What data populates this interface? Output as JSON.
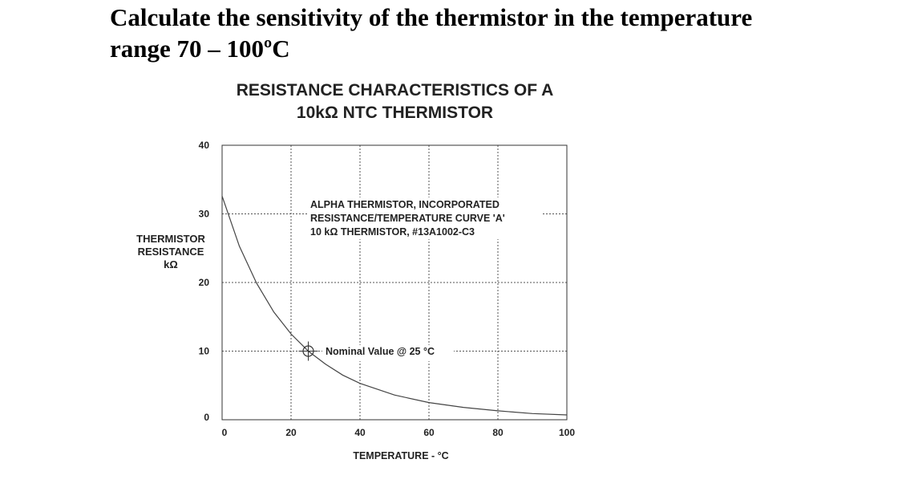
{
  "question": {
    "line1": "Calculate the sensitivity of the thermistor in the temperature",
    "line2": "range 70 – 100ºC"
  },
  "chart_data": {
    "type": "line",
    "title_lines": [
      "RESISTANCE CHARACTERISTICS OF A",
      "10kΩ NTC THERMISTOR"
    ],
    "ylabel_lines": [
      "THERMISTOR",
      "RESISTANCE",
      "kΩ"
    ],
    "xlabel": "TEMPERATURE - °C",
    "xlim": [
      0,
      100
    ],
    "ylim": [
      0,
      40
    ],
    "x_ticks": [
      0,
      20,
      40,
      60,
      80,
      100
    ],
    "y_ticks": [
      0,
      10,
      20,
      30,
      40
    ],
    "grid": true,
    "series": [
      {
        "x": [
          0,
          5,
          10,
          15,
          20,
          25,
          30,
          35,
          40,
          50,
          60,
          70,
          80,
          90,
          100
        ],
        "y": [
          32.6,
          25.3,
          19.9,
          15.7,
          12.5,
          10.0,
          8.1,
          6.5,
          5.3,
          3.6,
          2.5,
          1.8,
          1.3,
          0.9,
          0.7
        ]
      }
    ],
    "annotation_lines": [
      "ALPHA THERMISTOR, INCORPORATED",
      "RESISTANCE/TEMPERATURE CURVE 'A'",
      "10 kΩ THERMISTOR, #13A1002-C3"
    ],
    "marker": {
      "x": 25,
      "y": 10,
      "label": "Nominal Value @ 25 °C"
    }
  }
}
